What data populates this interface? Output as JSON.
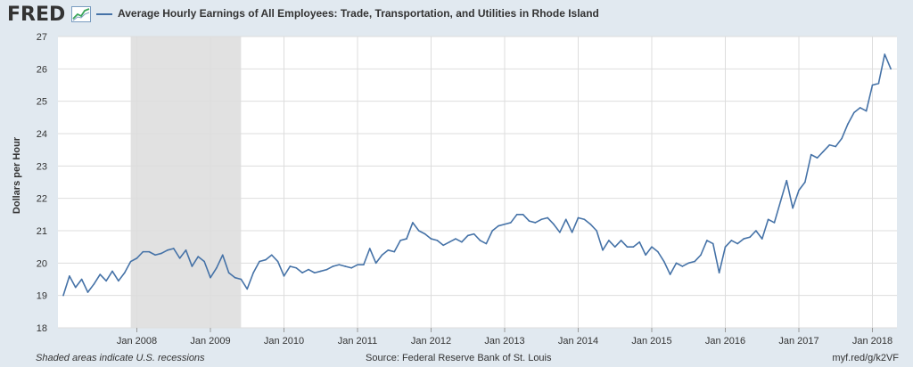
{
  "header": {
    "logo": "FRED",
    "logo_icon": "line-chart-icon",
    "series_title": "Average Hourly Earnings of All Employees: Trade, Transportation, and Utilities in Rhode Island"
  },
  "footer": {
    "recession_note": "Shaded areas indicate U.S. recessions",
    "source": "Source: Federal Reserve Bank of St. Louis",
    "link": "myf.red/g/k2VF"
  },
  "colors": {
    "background": "#e1e9f0",
    "plot_background": "#ffffff",
    "line": "#4572a7",
    "recession": "#e1e1e1",
    "grid": "#dddddd"
  },
  "chart_data": {
    "type": "line",
    "title": "Average Hourly Earnings of All Employees: Trade, Transportation, and Utilities in Rhode Island",
    "ylabel": "Dollars per Hour",
    "xlabel": "",
    "ylim": [
      18,
      27
    ],
    "yticks": [
      18,
      19,
      20,
      21,
      22,
      23,
      24,
      25,
      26,
      27
    ],
    "xlim": [
      "2007-01",
      "2018-05"
    ],
    "xticks": [
      {
        "x": "2008-01",
        "label": "Jan 2008"
      },
      {
        "x": "2009-01",
        "label": "Jan 2009"
      },
      {
        "x": "2010-01",
        "label": "Jan 2010"
      },
      {
        "x": "2011-01",
        "label": "Jan 2011"
      },
      {
        "x": "2012-01",
        "label": "Jan 2012"
      },
      {
        "x": "2013-01",
        "label": "Jan 2013"
      },
      {
        "x": "2014-01",
        "label": "Jan 2014"
      },
      {
        "x": "2015-01",
        "label": "Jan 2015"
      },
      {
        "x": "2016-01",
        "label": "Jan 2016"
      },
      {
        "x": "2017-01",
        "label": "Jan 2017"
      },
      {
        "x": "2018-01",
        "label": "Jan 2018"
      }
    ],
    "grid": true,
    "recessions": [
      {
        "start": "2007-12",
        "end": "2009-06"
      }
    ],
    "series": [
      {
        "x": [
          "2007-01",
          "2007-02",
          "2007-03",
          "2007-04",
          "2007-05",
          "2007-06",
          "2007-07",
          "2007-08",
          "2007-09",
          "2007-10",
          "2007-11",
          "2007-12",
          "2008-01",
          "2008-02",
          "2008-03",
          "2008-04",
          "2008-05",
          "2008-06",
          "2008-07",
          "2008-08",
          "2008-09",
          "2008-10",
          "2008-11",
          "2008-12",
          "2009-01",
          "2009-02",
          "2009-03",
          "2009-04",
          "2009-05",
          "2009-06",
          "2009-07",
          "2009-08",
          "2009-09",
          "2009-10",
          "2009-11",
          "2009-12",
          "2010-01",
          "2010-02",
          "2010-03",
          "2010-04",
          "2010-05",
          "2010-06",
          "2010-07",
          "2010-08",
          "2010-09",
          "2010-10",
          "2010-11",
          "2010-12",
          "2011-01",
          "2011-02",
          "2011-03",
          "2011-04",
          "2011-05",
          "2011-06",
          "2011-07",
          "2011-08",
          "2011-09",
          "2011-10",
          "2011-11",
          "2011-12",
          "2012-01",
          "2012-02",
          "2012-03",
          "2012-04",
          "2012-05",
          "2012-06",
          "2012-07",
          "2012-08",
          "2012-09",
          "2012-10",
          "2012-11",
          "2012-12",
          "2013-01",
          "2013-02",
          "2013-03",
          "2013-04",
          "2013-05",
          "2013-06",
          "2013-07",
          "2013-08",
          "2013-09",
          "2013-10",
          "2013-11",
          "2013-12",
          "2014-01",
          "2014-02",
          "2014-03",
          "2014-04",
          "2014-05",
          "2014-06",
          "2014-07",
          "2014-08",
          "2014-09",
          "2014-10",
          "2014-11",
          "2014-12",
          "2015-01",
          "2015-02",
          "2015-03",
          "2015-04",
          "2015-05",
          "2015-06",
          "2015-07",
          "2015-08",
          "2015-09",
          "2015-10",
          "2015-11",
          "2015-12",
          "2016-01",
          "2016-02",
          "2016-03",
          "2016-04",
          "2016-05",
          "2016-06",
          "2016-07",
          "2016-08",
          "2016-09",
          "2016-10",
          "2016-11",
          "2016-12",
          "2017-01",
          "2017-02",
          "2017-03",
          "2017-04",
          "2017-05",
          "2017-06",
          "2017-07",
          "2017-08",
          "2017-09",
          "2017-10",
          "2017-11",
          "2017-12",
          "2018-01",
          "2018-02",
          "2018-03",
          "2018-04"
        ],
        "values": [
          19.0,
          19.6,
          19.25,
          19.5,
          19.1,
          19.35,
          19.65,
          19.45,
          19.75,
          19.45,
          19.7,
          20.05,
          20.15,
          20.35,
          20.35,
          20.25,
          20.3,
          20.4,
          20.45,
          20.15,
          20.4,
          19.9,
          20.2,
          20.05,
          19.55,
          19.85,
          20.25,
          19.7,
          19.55,
          19.5,
          19.2,
          19.7,
          20.05,
          20.1,
          20.25,
          20.05,
          19.6,
          19.9,
          19.85,
          19.7,
          19.8,
          19.7,
          19.75,
          19.8,
          19.9,
          19.95,
          19.9,
          19.85,
          19.95,
          19.95,
          20.45,
          20.0,
          20.25,
          20.4,
          20.35,
          20.7,
          20.75,
          21.25,
          21.0,
          20.9,
          20.75,
          20.7,
          20.55,
          20.65,
          20.75,
          20.65,
          20.85,
          20.9,
          20.7,
          20.6,
          21.0,
          21.15,
          21.2,
          21.25,
          21.5,
          21.5,
          21.3,
          21.25,
          21.35,
          21.4,
          21.2,
          20.95,
          21.35,
          20.95,
          21.4,
          21.35,
          21.2,
          21.0,
          20.4,
          20.7,
          20.5,
          20.7,
          20.5,
          20.5,
          20.65,
          20.25,
          20.5,
          20.35,
          20.05,
          19.65,
          20.0,
          19.9,
          20.0,
          20.05,
          20.25,
          20.7,
          20.6,
          19.7,
          20.5,
          20.7,
          20.6,
          20.75,
          20.8,
          21.0,
          20.75,
          21.35,
          21.25,
          21.9,
          22.55,
          21.7,
          22.25,
          22.5,
          23.35,
          23.25,
          23.45,
          23.65,
          23.6,
          23.85,
          24.3,
          24.65,
          24.8,
          24.7,
          25.5,
          25.55,
          26.45,
          26.0
        ]
      }
    ]
  }
}
